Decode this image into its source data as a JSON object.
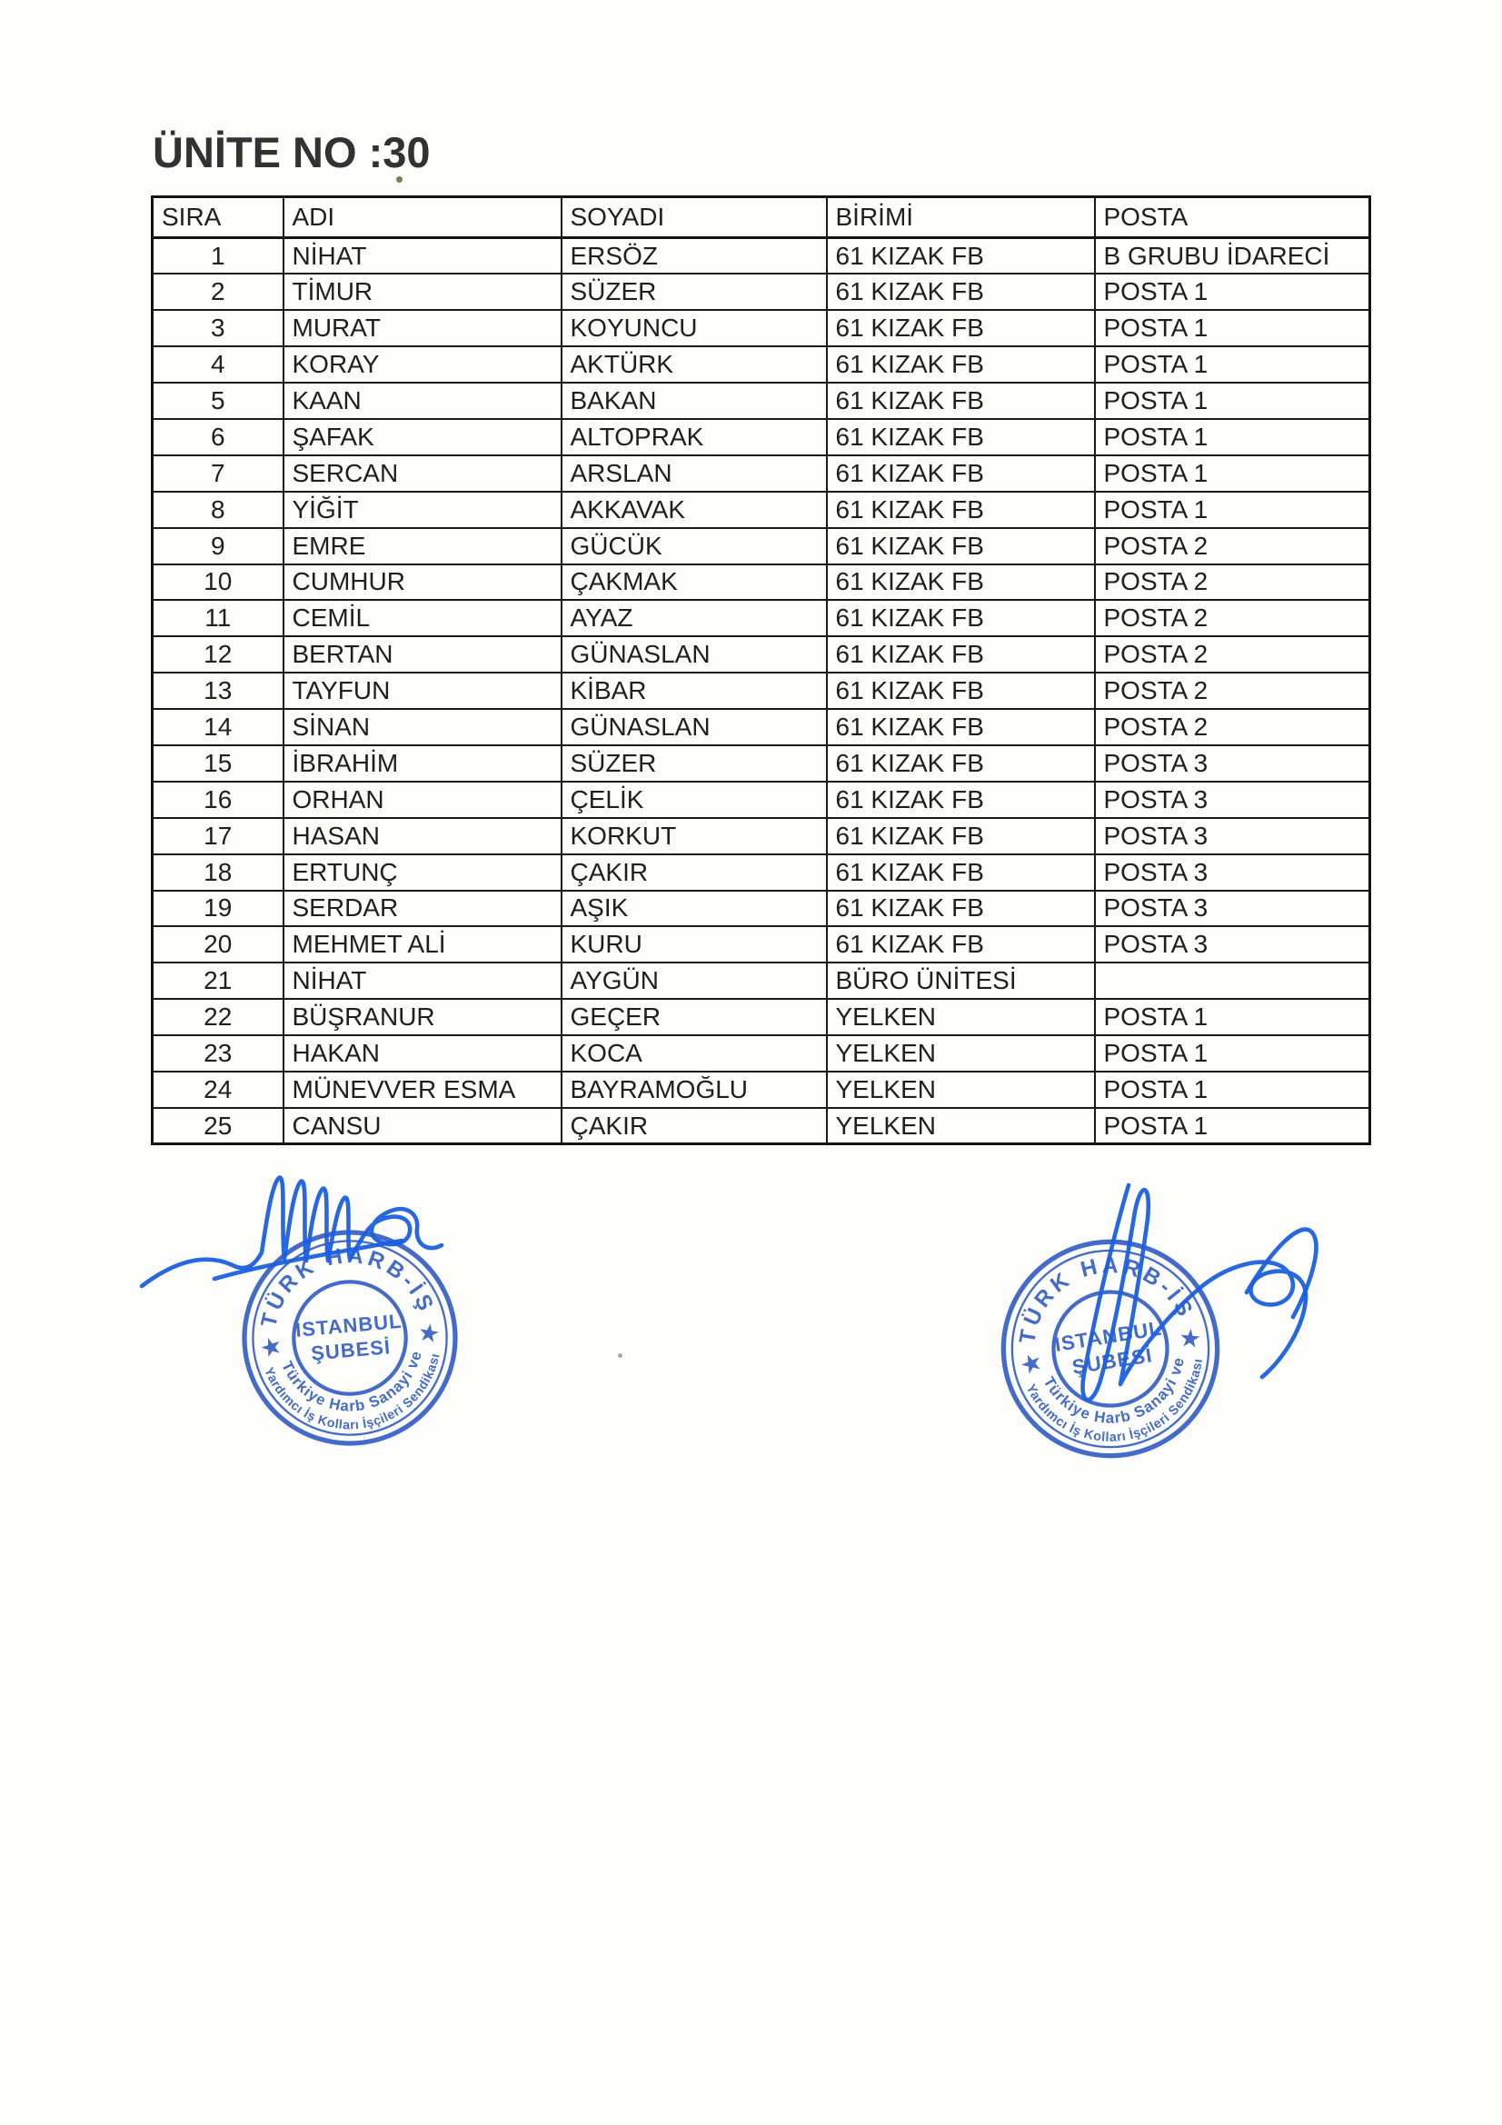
{
  "page": {
    "title": "ÜNİTE NO :30"
  },
  "table": {
    "headers": [
      "SIRA",
      "ADI",
      "SOYADI",
      "BİRİMİ",
      "POSTA"
    ],
    "rows": [
      [
        "1",
        "NİHAT",
        "ERSÖZ",
        "61 KIZAK FB",
        "B GRUBU İDARECİ"
      ],
      [
        "2",
        "TİMUR",
        "SÜZER",
        "61 KIZAK FB",
        "POSTA 1"
      ],
      [
        "3",
        "MURAT",
        "KOYUNCU",
        "61 KIZAK FB",
        "POSTA 1"
      ],
      [
        "4",
        "KORAY",
        "AKTÜRK",
        "61 KIZAK FB",
        "POSTA 1"
      ],
      [
        "5",
        "KAAN",
        "BAKAN",
        "61 KIZAK FB",
        "POSTA 1"
      ],
      [
        "6",
        "ŞAFAK",
        "ALTOPRAK",
        "61 KIZAK FB",
        "POSTA 1"
      ],
      [
        "7",
        "SERCAN",
        "ARSLAN",
        "61 KIZAK FB",
        "POSTA 1"
      ],
      [
        "8",
        "YİĞİT",
        "AKKAVAK",
        "61 KIZAK FB",
        "POSTA 1"
      ],
      [
        "9",
        "EMRE",
        "GÜCÜK",
        "61 KIZAK FB",
        "POSTA 2"
      ],
      [
        "10",
        "CUMHUR",
        "ÇAKMAK",
        "61 KIZAK FB",
        "POSTA 2"
      ],
      [
        "11",
        "CEMİL",
        "AYAZ",
        "61 KIZAK FB",
        "POSTA 2"
      ],
      [
        "12",
        "BERTAN",
        "GÜNASLAN",
        "61 KIZAK FB",
        "POSTA 2"
      ],
      [
        "13",
        "TAYFUN",
        "KİBAR",
        "61 KIZAK FB",
        "POSTA 2"
      ],
      [
        "14",
        "SİNAN",
        "GÜNASLAN",
        "61 KIZAK FB",
        "POSTA 2"
      ],
      [
        "15",
        "İBRAHİM",
        "SÜZER",
        "61 KIZAK FB",
        "POSTA 3"
      ],
      [
        "16",
        "ORHAN",
        "ÇELİK",
        "61 KIZAK FB",
        "POSTA 3"
      ],
      [
        "17",
        "HASAN",
        "KORKUT",
        "61 KIZAK FB",
        "POSTA 3"
      ],
      [
        "18",
        "ERTUNÇ",
        "ÇAKIR",
        "61 KIZAK FB",
        "POSTA 3"
      ],
      [
        "19",
        "SERDAR",
        "AŞIK",
        "61 KIZAK FB",
        "POSTA 3"
      ],
      [
        "20",
        "MEHMET ALİ",
        "KURU",
        "61 KIZAK FB",
        "POSTA 3"
      ],
      [
        "21",
        "NİHAT",
        "AYGÜN",
        "BÜRO ÜNİTESİ",
        ""
      ],
      [
        "22",
        "BÜŞRANUR",
        "GEÇER",
        "YELKEN",
        "POSTA 1"
      ],
      [
        "23",
        "HAKAN",
        "KOCA",
        "YELKEN",
        "POSTA 1"
      ],
      [
        "24",
        "MÜNEVVER ESMA",
        "BAYRAMOĞLU",
        "YELKEN",
        "POSTA 1"
      ],
      [
        "25",
        "CANSU",
        "ÇAKIR",
        "YELKEN",
        "POSTA 1"
      ]
    ]
  },
  "stamps": {
    "ink_color": "#2b57c0",
    "signature_color": "#1b60de",
    "arc_top": "TÜRK HARB-İŞ",
    "center_line1": "ISTANBUL",
    "center_line2": "ŞUBESİ",
    "arc_bottom_inner": "Türkiye Harb Sanayi ve",
    "arc_bottom_outer": "Yardımcı İş Kolları İşçileri Sendikası",
    "star_glyph": "★"
  }
}
